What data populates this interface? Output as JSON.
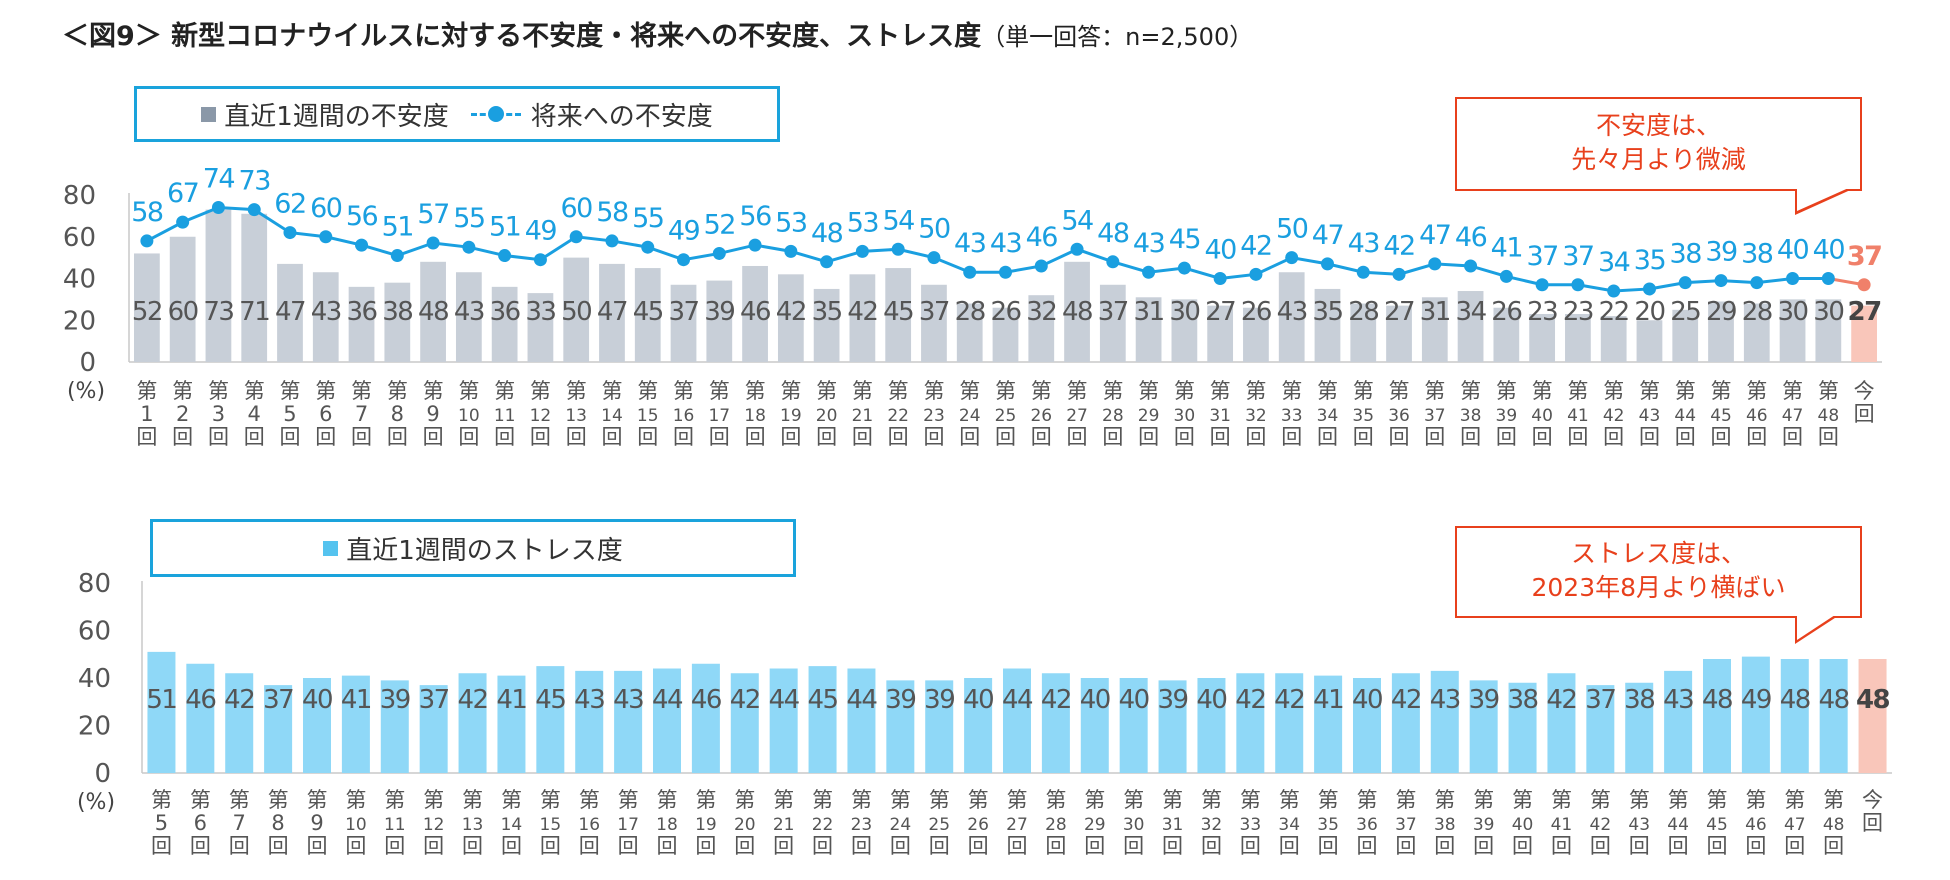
{
  "title": {
    "main": "＜図9＞ 新型コロナウイルスに対する不安度・将来への不安度、ストレス度",
    "sub": "（単一回答：n=2,500）"
  },
  "colors": {
    "bar_gray": "#c8cfd8",
    "bar_blue": "#8fd8f7",
    "bar_current": "#f9c6ba",
    "line_blue": "#1a9fe0",
    "line_current": "#f0806a",
    "label_dark": "#555555",
    "accent_red": "#e8401c",
    "axis": "#c9c9c9"
  },
  "chart_data": [
    {
      "type": "bar+line",
      "title": "新型コロナウイルスに対する不安度・将来への不安度",
      "ylabel": "(%)",
      "ylim": [
        0,
        80
      ],
      "yticks": [
        0,
        20,
        40,
        60,
        80
      ],
      "legend": {
        "bar": "直近1週間の不安度",
        "line_marker": "-●-",
        "line": "将来への不安度",
        "placement": "top-left"
      },
      "categories": [
        "第1回",
        "第2回",
        "第3回",
        "第4回",
        "第5回",
        "第6回",
        "第7回",
        "第8回",
        "第9回",
        "第10回",
        "第11回",
        "第12回",
        "第13回",
        "第14回",
        "第15回",
        "第16回",
        "第17回",
        "第18回",
        "第19回",
        "第20回",
        "第21回",
        "第22回",
        "第23回",
        "第24回",
        "第25回",
        "第26回",
        "第27回",
        "第28回",
        "第29回",
        "第30回",
        "第31回",
        "第32回",
        "第33回",
        "第34回",
        "第35回",
        "第36回",
        "第37回",
        "第38回",
        "第39回",
        "第40回",
        "第41回",
        "第42回",
        "第43回",
        "第44回",
        "第45回",
        "第46回",
        "第47回",
        "第48回",
        "今回"
      ],
      "series": [
        {
          "name": "直近1週間の不安度",
          "kind": "bar",
          "values": [
            52,
            60,
            73,
            71,
            47,
            43,
            36,
            38,
            48,
            43,
            36,
            33,
            50,
            47,
            45,
            37,
            39,
            46,
            42,
            35,
            42,
            45,
            37,
            28,
            26,
            32,
            48,
            37,
            31,
            30,
            27,
            26,
            43,
            35,
            28,
            27,
            31,
            34,
            26,
            23,
            23,
            22,
            20,
            25,
            29,
            28,
            30,
            30,
            27
          ]
        },
        {
          "name": "将来への不安度",
          "kind": "line",
          "values": [
            58,
            67,
            74,
            73,
            62,
            60,
            56,
            51,
            57,
            55,
            51,
            49,
            60,
            58,
            55,
            49,
            52,
            56,
            53,
            48,
            53,
            54,
            50,
            43,
            43,
            46,
            54,
            48,
            43,
            45,
            40,
            42,
            50,
            47,
            43,
            42,
            47,
            46,
            41,
            37,
            37,
            34,
            35,
            38,
            39,
            38,
            40,
            40,
            37
          ]
        }
      ],
      "callout": [
        "不安度は、",
        "先々月より微減"
      ]
    },
    {
      "type": "bar",
      "title": "直近1週間のストレス度",
      "ylabel": "(%)",
      "ylim": [
        0,
        80
      ],
      "yticks": [
        0,
        20,
        40,
        60,
        80
      ],
      "legend": {
        "bar": "直近1週間のストレス度",
        "placement": "top-left"
      },
      "categories": [
        "第5回",
        "第6回",
        "第7回",
        "第8回",
        "第9回",
        "第10回",
        "第11回",
        "第12回",
        "第13回",
        "第14回",
        "第15回",
        "第16回",
        "第17回",
        "第18回",
        "第19回",
        "第20回",
        "第21回",
        "第22回",
        "第23回",
        "第24回",
        "第25回",
        "第26回",
        "第27回",
        "第28回",
        "第29回",
        "第30回",
        "第31回",
        "第32回",
        "第33回",
        "第34回",
        "第35回",
        "第36回",
        "第37回",
        "第38回",
        "第39回",
        "第40回",
        "第41回",
        "第42回",
        "第43回",
        "第44回",
        "第45回",
        "第46回",
        "第47回",
        "第48回",
        "今回"
      ],
      "series": [
        {
          "name": "直近1週間のストレス度",
          "kind": "bar",
          "values": [
            51,
            46,
            42,
            37,
            40,
            41,
            39,
            37,
            42,
            41,
            45,
            43,
            43,
            44,
            46,
            42,
            44,
            45,
            44,
            39,
            39,
            40,
            44,
            42,
            40,
            40,
            39,
            40,
            42,
            42,
            41,
            40,
            42,
            43,
            39,
            38,
            42,
            37,
            38,
            43,
            48,
            49,
            48,
            48,
            48
          ]
        }
      ],
      "callout": [
        "ストレス度は、",
        "2023年8月より横ばい"
      ]
    }
  ]
}
